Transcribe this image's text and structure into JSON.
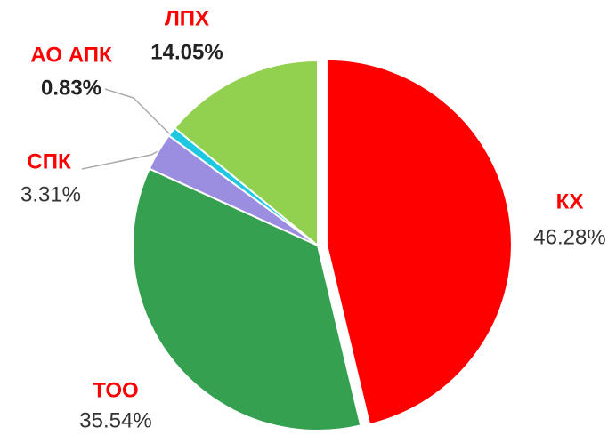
{
  "chart_data": {
    "type": "pie",
    "categories": [
      "КХ",
      "ТОО",
      "СПК",
      "АО АПК",
      "ЛПХ"
    ],
    "values": [
      46.28,
      35.54,
      3.31,
      0.83,
      14.05
    ],
    "value_labels": [
      "46.28%",
      "35.54%",
      "3.31%",
      "0.83%",
      "14.05%"
    ],
    "colors": [
      "#ff0000",
      "#34a050",
      "#9b8de0",
      "#1ec8e0",
      "#92d050"
    ]
  }
}
